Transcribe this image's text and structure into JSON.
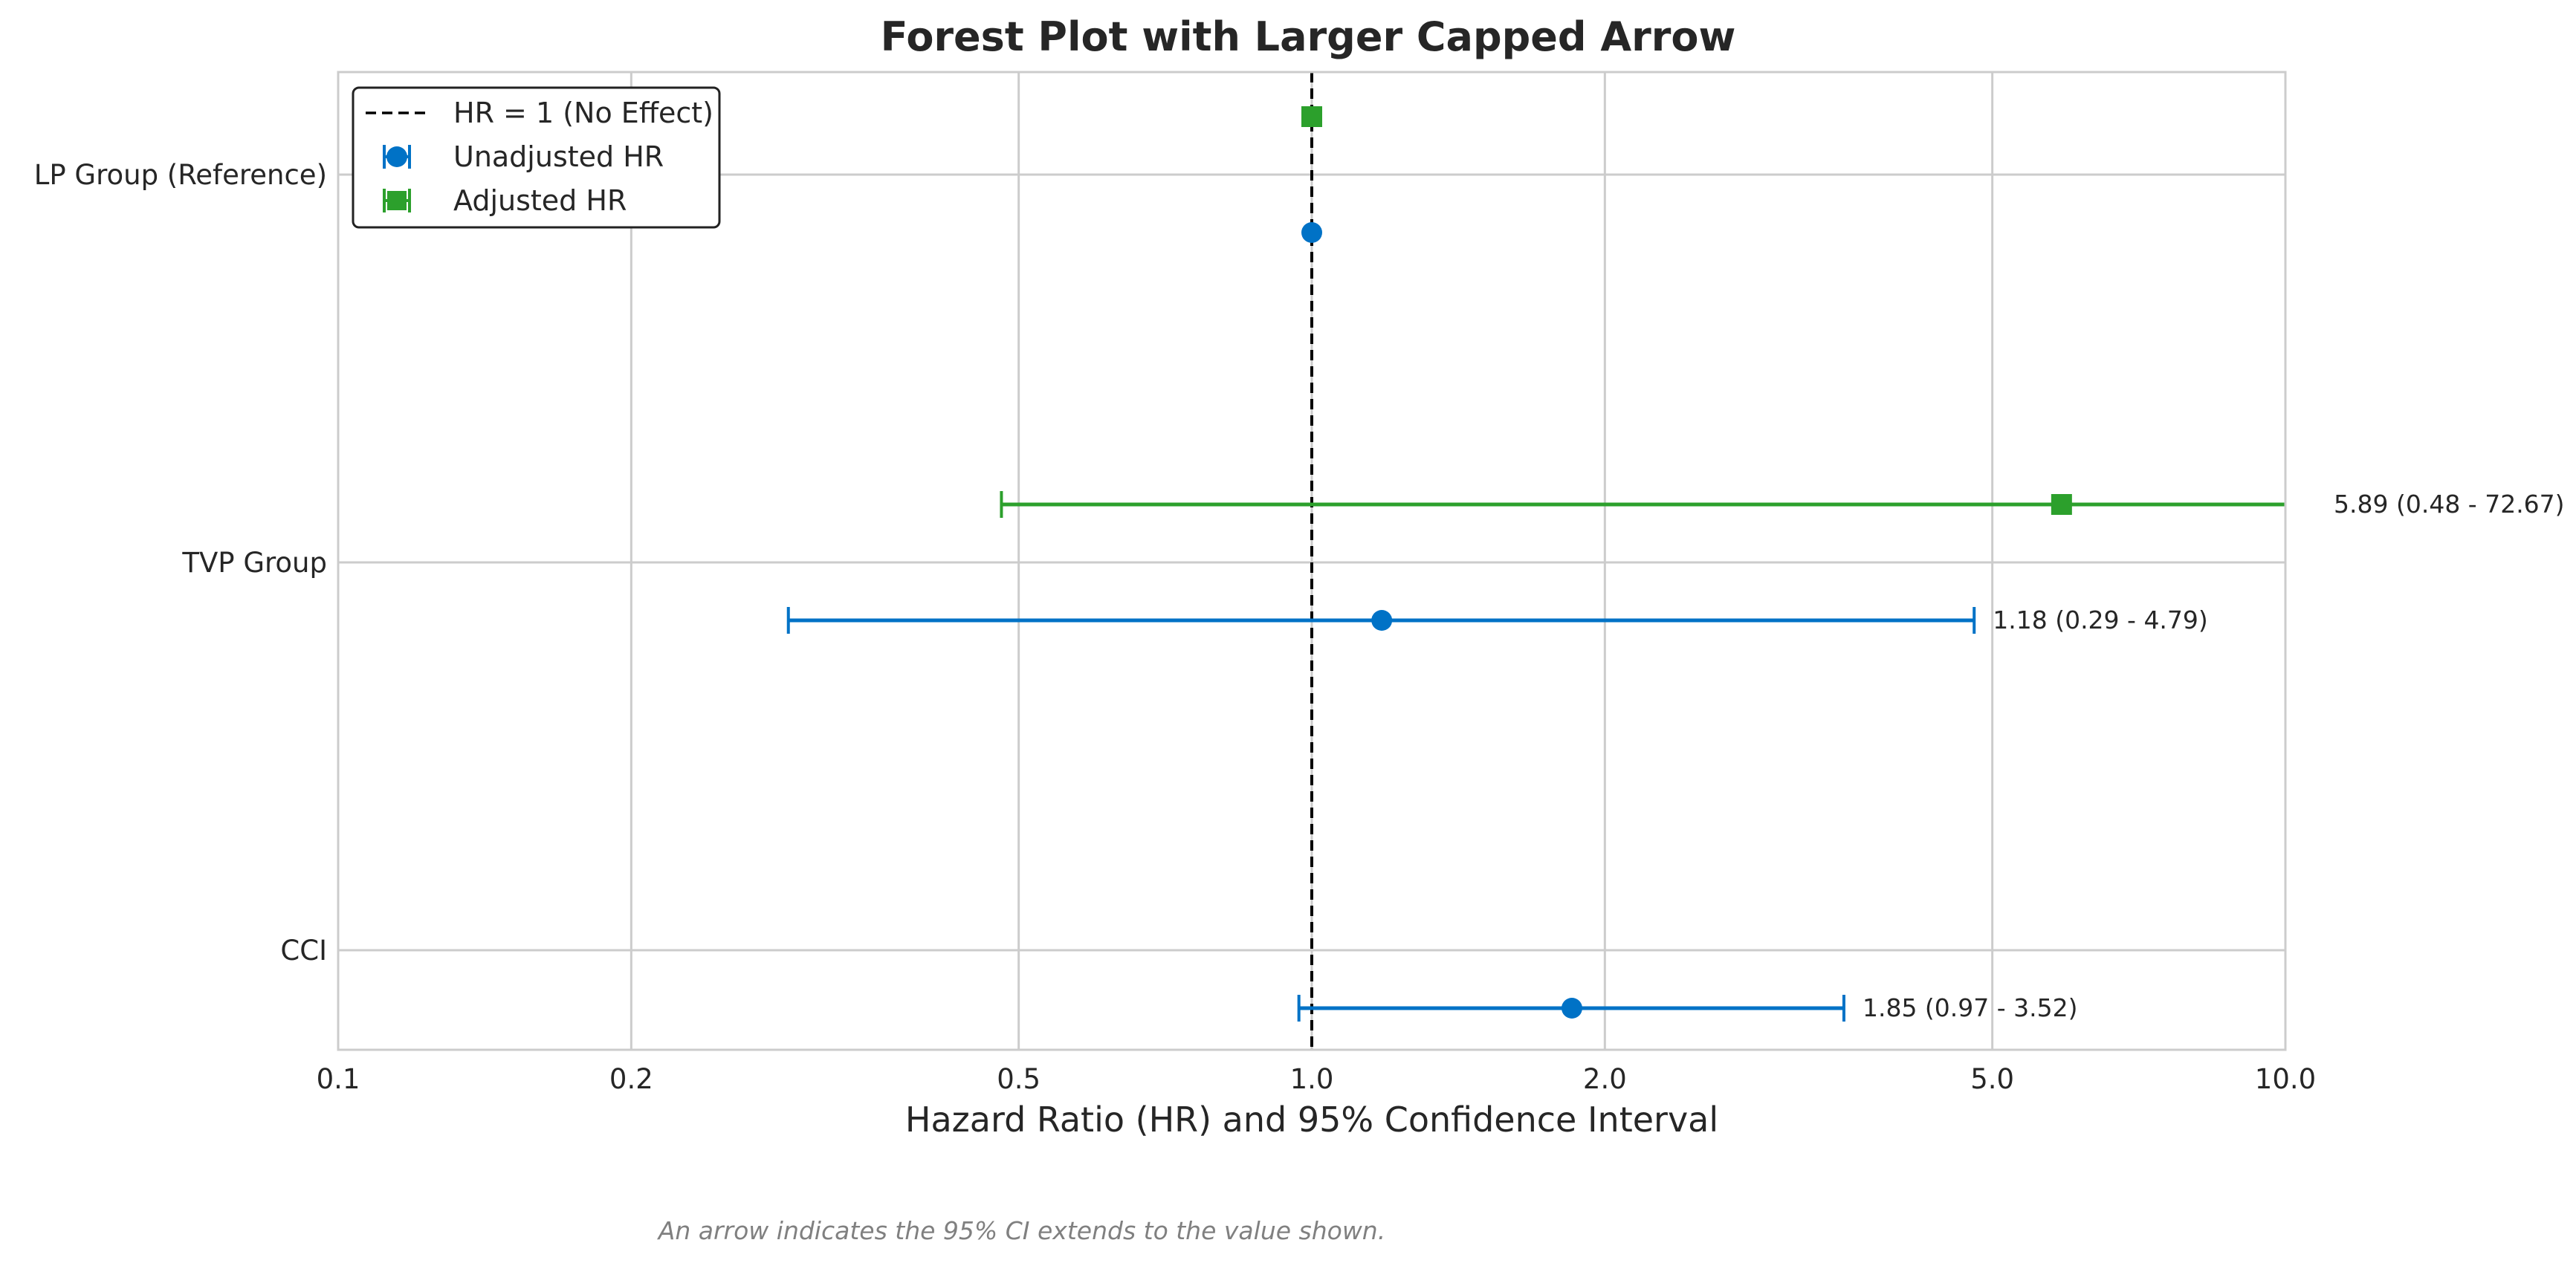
{
  "chart_data": {
    "type": "forest",
    "title": "Forest Plot with Larger Capped Arrow",
    "xlabel": "Hazard Ratio (HR) and 95% Confidence Interval",
    "x_scale": "log",
    "xlim": [
      0.1,
      10.0
    ],
    "x_ticks": [
      0.1,
      0.2,
      0.5,
      1.0,
      2.0,
      5.0,
      10.0
    ],
    "x_tick_labels": [
      "0.1",
      "0.2",
      "0.5",
      "1.0",
      "2.0",
      "5.0",
      "10.0"
    ],
    "categories": [
      "LP Group (Reference)",
      "TVP Group",
      "CCI"
    ],
    "grid": true,
    "reference_line": {
      "x": 1.0,
      "label": "HR = 1 (No Effect)",
      "color": "#000000"
    },
    "legend_position": "upper left",
    "series": [
      {
        "name": "Adjusted HR",
        "marker": "square",
        "color": "#2ca02c",
        "points": [
          {
            "category": "LP Group (Reference)",
            "hr": 1.0,
            "lower": null,
            "upper": null,
            "label": ""
          },
          {
            "category": "TVP Group",
            "hr": 5.89,
            "lower": 0.48,
            "upper": 72.67,
            "label": "5.89 (0.48 - 72.67)"
          }
        ]
      },
      {
        "name": "Unadjusted HR",
        "marker": "circle",
        "color": "#0072c6",
        "points": [
          {
            "category": "LP Group (Reference)",
            "hr": 1.0,
            "lower": null,
            "upper": null,
            "label": ""
          },
          {
            "category": "TVP Group",
            "hr": 1.18,
            "lower": 0.29,
            "upper": 4.79,
            "label": "1.18 (0.29 - 4.79)"
          },
          {
            "category": "CCI",
            "hr": 1.85,
            "lower": 0.97,
            "upper": 3.52,
            "label": "1.85 (0.97 - 3.52)"
          }
        ]
      }
    ],
    "legend": [
      "HR = 1 (No Effect)",
      "Unadjusted HR",
      "Adjusted HR"
    ],
    "caption": "An arrow indicates the 95% CI extends to the value shown."
  }
}
